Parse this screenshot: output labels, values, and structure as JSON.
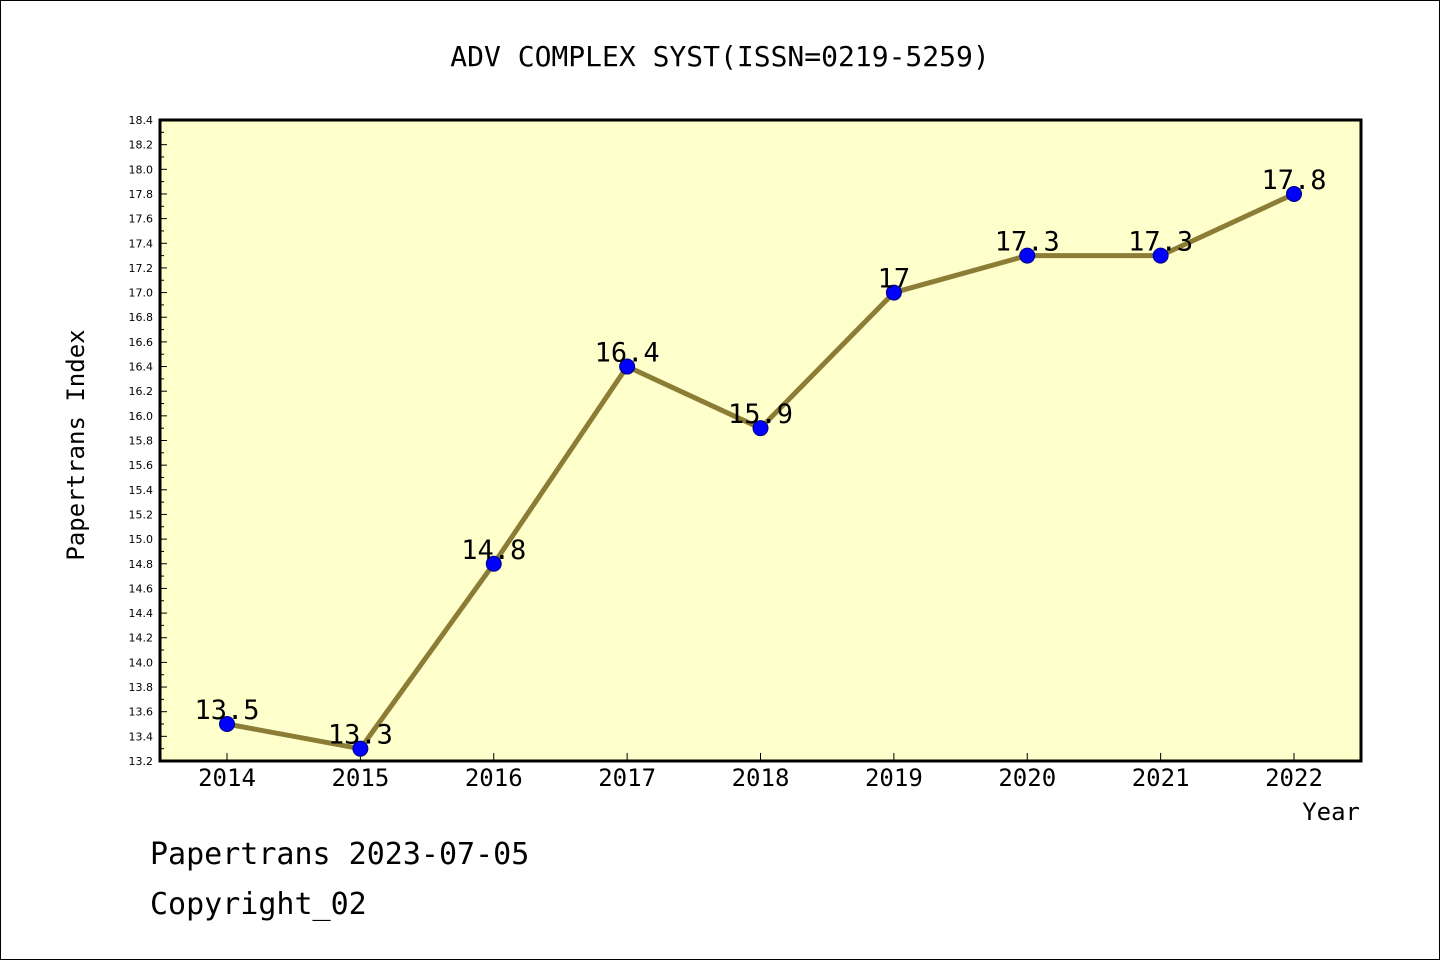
{
  "chart_data": {
    "type": "line",
    "title": "ADV COMPLEX SYST(ISSN=0219-5259)",
    "xlabel": "Year",
    "ylabel": "Papertrans Index",
    "categories": [
      "2014",
      "2015",
      "2016",
      "2017",
      "2018",
      "2019",
      "2020",
      "2021",
      "2022"
    ],
    "values": [
      13.5,
      13.3,
      14.8,
      16.4,
      15.9,
      17,
      17.3,
      17.3,
      17.8
    ],
    "data_labels": [
      "13.5",
      "13.3",
      "14.8",
      "16.4",
      "15.9",
      "17",
      "17.3",
      "17.3",
      "17.8"
    ],
    "ylim": [
      13.2,
      18.4
    ],
    "ytick_step": 0.2,
    "ytick_labels": [
      "13.2",
      "13.4",
      "13.6",
      "13.8",
      "14.0",
      "14.2",
      "14.4",
      "14.6",
      "14.8",
      "15.0",
      "15.2",
      "15.4",
      "15.6",
      "15.8",
      "16.0",
      "16.2",
      "16.4",
      "16.6",
      "16.8",
      "17.0",
      "17.2",
      "17.4",
      "17.6",
      "17.8",
      "18.0",
      "18.2",
      "18.4"
    ],
    "grid": false,
    "legend": "none",
    "colors": {
      "plot_background": "#ffffcc",
      "line": "#8b7d35",
      "marker": "#0000ff",
      "marker_edge": "#000080"
    }
  },
  "footer": {
    "line1": "Papertrans 2023-07-05",
    "line2": "Copyright_02"
  }
}
